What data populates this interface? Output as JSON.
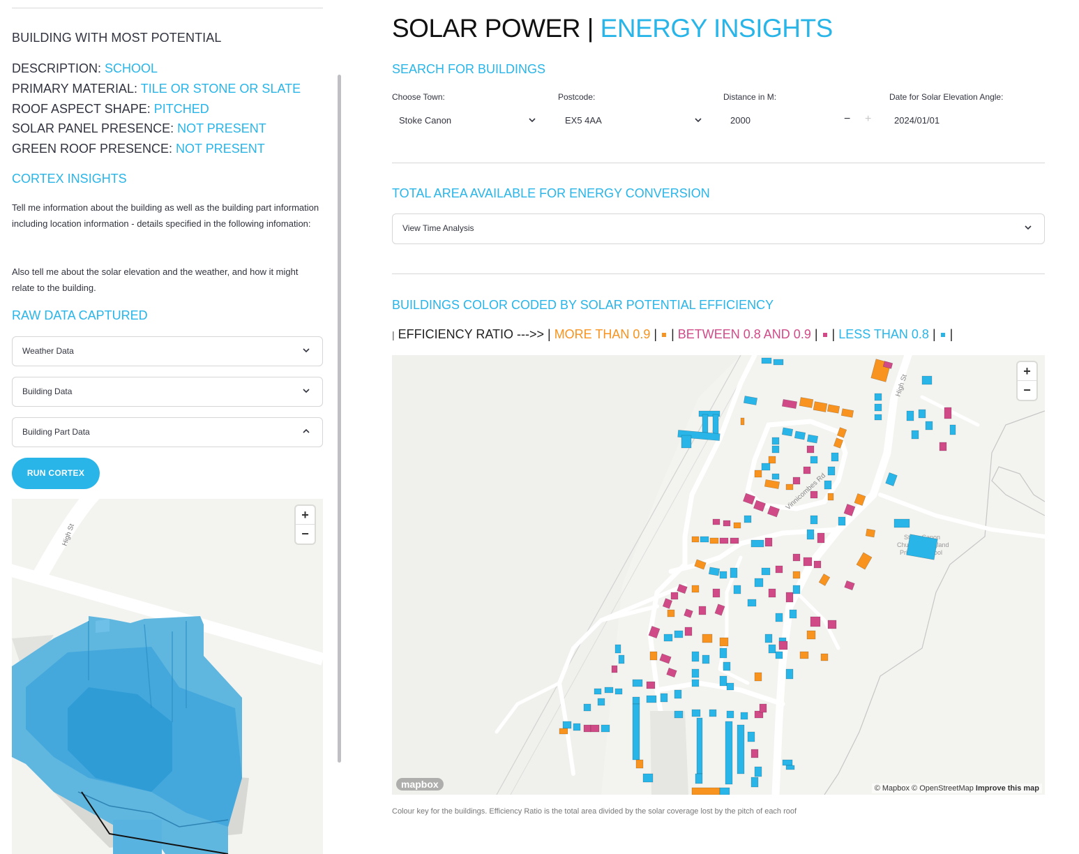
{
  "sidebar": {
    "heading": "BUILDING WITH MOST POTENTIAL",
    "details": [
      {
        "key": "DESCRIPTION: ",
        "value": "SCHOOL"
      },
      {
        "key": "PRIMARY MATERIAL: ",
        "value": "TILE OR STONE OR SLATE"
      },
      {
        "key": "ROOF ASPECT SHAPE: ",
        "value": "PITCHED"
      },
      {
        "key": "SOLAR PANEL PRESENCE: ",
        "value": "NOT PRESENT"
      },
      {
        "key": "GREEN ROOF PRESENCE: ",
        "value": "NOT PRESENT"
      }
    ],
    "cortex_heading": "CORTEX INSIGHTS",
    "cortex_para1": "Tell me information about the building as well as the building part information including location information - details specified in the following infomation:",
    "cortex_para2": "Also tell me about the solar elevation and the weather, and how it might relate to the building.",
    "raw_heading": "RAW DATA CAPTURED",
    "expanders": [
      {
        "label": "Weather Data",
        "state": "collapsed"
      },
      {
        "label": "Building Data",
        "state": "collapsed"
      },
      {
        "label": "Building Part Data",
        "state": "expanded"
      }
    ],
    "run_button": "RUN CORTEX",
    "mini_map": {
      "street_label": "High St",
      "building_color": "#29a8e0",
      "zoom_in": "+",
      "zoom_out": "−"
    }
  },
  "main": {
    "title_part1": "SOLAR POWER | ",
    "title_part2": "ENERGY INSIGHTS",
    "search_heading": "SEARCH FOR BUILDINGS",
    "filters": {
      "town": {
        "label": "Choose Town:",
        "value": "Stoke Canon"
      },
      "postcode": {
        "label": "Postcode:",
        "value": "EX5 4AA"
      },
      "distance": {
        "label": "Distance in M:",
        "value": "2000",
        "decrement": "−",
        "increment": "+"
      },
      "date": {
        "label": "Date for Solar Elevation Angle:",
        "value": "2024/01/01"
      }
    },
    "area_heading": "TOTAL AREA AVAILABLE FOR ENERGY CONVERSION",
    "time_analysis_label": "View Time Analysis",
    "map_heading": "BUILDINGS COLOR CODED BY SOLAR POTENTIAL EFFICIENCY",
    "legend": {
      "prefix_bar": "|",
      "label": " EFFICIENCY RATIO --->> | ",
      "high": "MORE THAN 0.9",
      "sep1": " | ",
      "mid_sep": " | ",
      "mid": "BETWEEN 0.8 AND 0.9",
      "sep2": " | ",
      "low_sep": " | ",
      "low": "LESS THAN 0.8",
      "sep3": " | ",
      "end": " |",
      "colors": {
        "high": "#f7931e",
        "mid": "#d04a87",
        "low": "#29b5e8"
      }
    },
    "map": {
      "street_high_st": "High St",
      "street_vinnicombes": "Vinnicombes Rd",
      "school_label_1": "Stoke Canon",
      "school_label_2": "Church of England",
      "school_label_3": "Primary School",
      "zoom_in": "+",
      "zoom_out": "−",
      "logo": "mapbox",
      "attribution_1": "© Mapbox © OpenStreetMap ",
      "attribution_2": "Improve this map"
    },
    "caption": "Colour key for the buildings. Efficiency Ratio is the total area divided by the solar coverage lost by the pitch of each roof"
  }
}
